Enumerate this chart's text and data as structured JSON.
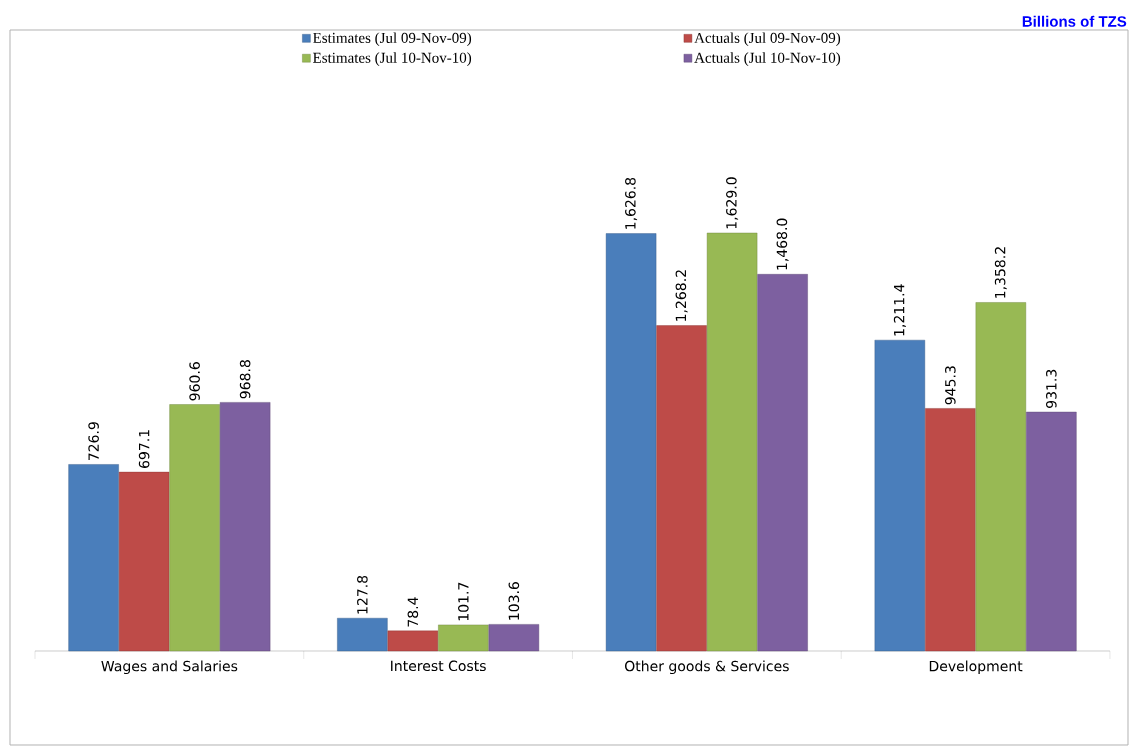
{
  "chart_data": {
    "type": "bar",
    "categories": [
      "Wages and Salaries",
      "Interest Costs",
      "Other goods & Services",
      "Development"
    ],
    "series": [
      {
        "name": "Estimates (Jul 09-Nov-09)",
        "color": "#4a7ebb",
        "values": [
          726.9,
          127.8,
          1626.8,
          1211.4
        ],
        "value_labels": [
          "726.9",
          "127.8",
          "1,626.8",
          "1,211.4"
        ]
      },
      {
        "name": "Actuals (Jul 09-Nov-09)",
        "color": "#be4b48",
        "values": [
          697.1,
          78.4,
          1268.2,
          945.3
        ],
        "value_labels": [
          "697.1",
          "78.4",
          "1,268.2",
          "945.3"
        ]
      },
      {
        "name": "Estimates (Jul 10-Nov-10)",
        "color": "#98b954",
        "values": [
          960.6,
          101.7,
          1629.0,
          1358.2
        ],
        "value_labels": [
          "960.6",
          "101.7",
          "1,629.0",
          "1,358.2"
        ]
      },
      {
        "name": "Actuals (Jul 10-Nov-10)",
        "color": "#7d60a0",
        "values": [
          968.8,
          103.6,
          1468.0,
          931.3
        ],
        "value_labels": [
          "968.8",
          "103.6",
          "1,468.0",
          "931.3"
        ]
      }
    ],
    "tick_labels": "x",
    "legend": "top",
    "annotations": [
      "Billions of TZS"
    ]
  }
}
